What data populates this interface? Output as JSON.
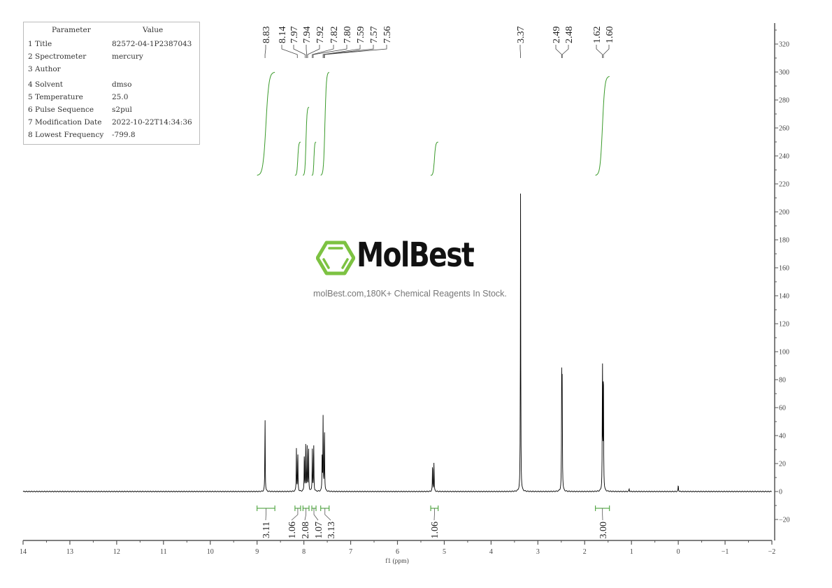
{
  "parameters": {
    "header": {
      "parameter": "Parameter",
      "value": "Value"
    },
    "rows": [
      {
        "label": "1 Title",
        "value": "82572-04-1P2387043"
      },
      {
        "label": "2 Spectrometer",
        "value": "mercury"
      },
      {
        "label": "3 Author",
        "value": ""
      },
      {
        "label": "4 Solvent",
        "value": "dmso"
      },
      {
        "label": "5 Temperature",
        "value": "25.0"
      },
      {
        "label": "6 Pulse Sequence",
        "value": "s2pul"
      },
      {
        "label": "7 Modification Date",
        "value": "2022-10-22T14:34:36"
      },
      {
        "label": "8 Lowest Frequency",
        "value": "-799.8"
      }
    ]
  },
  "watermark": {
    "brand": "MolBest",
    "tagline": "molBest.com,180K+ Chemical Reagents In Stock.",
    "brand_color": "#7dc242"
  },
  "chart_data": {
    "type": "line",
    "title": "",
    "xlabel": "f1 (ppm)",
    "ylabel": "",
    "xlim": [
      14,
      -2
    ],
    "ylim": [
      -35,
      335
    ],
    "x_ticks": [
      14,
      13,
      12,
      11,
      10,
      9,
      8,
      7,
      6,
      5,
      4,
      3,
      2,
      1,
      0,
      -1,
      -2
    ],
    "x_tick_labels": [
      "14",
      "13",
      "12",
      "11",
      "10",
      "9",
      "8",
      "7",
      "6",
      "5",
      "4",
      "3",
      "2",
      "1",
      "0",
      "−1",
      "−2"
    ],
    "y_ticks": [
      -20,
      0,
      20,
      40,
      60,
      80,
      100,
      120,
      140,
      160,
      180,
      200,
      220,
      240,
      260,
      280,
      300,
      320
    ],
    "y_tick_labels": [
      "−20",
      "0",
      "20",
      "40",
      "60",
      "80",
      "100",
      "120",
      "140",
      "160",
      "180",
      "200",
      "220",
      "240",
      "260",
      "280",
      "300",
      "320"
    ],
    "y_axis_position": "right",
    "grid": false,
    "line_color": "#000000",
    "integral_color": "#3a9a2a",
    "peaks": [
      {
        "ppm": 8.83,
        "height": 55
      },
      {
        "ppm": 8.16,
        "height": 31
      },
      {
        "ppm": 8.13,
        "height": 30
      },
      {
        "ppm": 7.99,
        "height": 30
      },
      {
        "ppm": 7.96,
        "height": 33
      },
      {
        "ppm": 7.93,
        "height": 32
      },
      {
        "ppm": 7.9,
        "height": 35
      },
      {
        "ppm": 7.82,
        "height": 30
      },
      {
        "ppm": 7.79,
        "height": 37
      },
      {
        "ppm": 7.61,
        "height": 24
      },
      {
        "ppm": 7.59,
        "height": 53
      },
      {
        "ppm": 7.56,
        "height": 48
      },
      {
        "ppm": 5.25,
        "height": 21
      },
      {
        "ppm": 5.22,
        "height": 21
      },
      {
        "ppm": 3.37,
        "height": 213
      },
      {
        "ppm": 2.49,
        "height": 88
      },
      {
        "ppm": 2.48,
        "height": 70
      },
      {
        "ppm": 1.62,
        "height": 98
      },
      {
        "ppm": 1.6,
        "height": 97
      },
      {
        "ppm": 1.05,
        "height": 2
      },
      {
        "ppm": 0.0,
        "height": 5
      }
    ],
    "peak_labels": [
      "8.83",
      "8.14",
      "7.97",
      "7.94",
      "7.92",
      "7.82",
      "7.80",
      "7.59",
      "7.57",
      "7.56",
      "3.37",
      "2.49",
      "2.48",
      "1.62",
      "1.60"
    ],
    "integrals": [
      {
        "from": 9.0,
        "to": 8.62,
        "value": "3.11",
        "curve_from": 226,
        "curve_to": 300
      },
      {
        "from": 8.19,
        "to": 8.07,
        "value": "1.06",
        "curve_from": 226,
        "curve_to": 250
      },
      {
        "from": 8.02,
        "to": 7.89,
        "value": "2.08",
        "curve_from": 226,
        "curve_to": 275
      },
      {
        "from": 7.83,
        "to": 7.74,
        "value": "1.07",
        "curve_from": 226,
        "curve_to": 250
      },
      {
        "from": 7.64,
        "to": 7.46,
        "value": "3.13",
        "curve_from": 226,
        "curve_to": 300
      },
      {
        "from": 5.29,
        "to": 5.13,
        "value": "1.06",
        "curve_from": 226,
        "curve_to": 250
      },
      {
        "from": 1.77,
        "to": 1.47,
        "value": "3.00",
        "curve_from": 226,
        "curve_to": 297
      }
    ]
  }
}
